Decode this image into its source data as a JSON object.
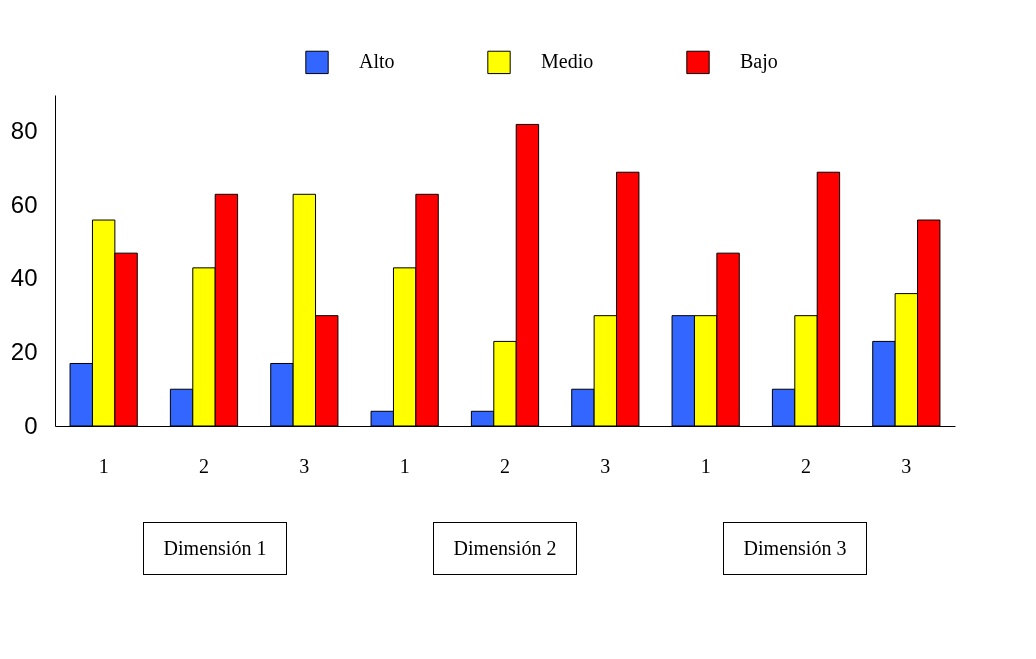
{
  "chart_data": {
    "type": "bar",
    "categories": [
      "1",
      "2",
      "3",
      "1",
      "2",
      "3",
      "1",
      "2",
      "3"
    ],
    "series": [
      {
        "name": "Alto",
        "color": "#3366ff",
        "values": [
          17,
          10,
          17,
          4,
          4,
          10,
          30,
          10,
          23
        ]
      },
      {
        "name": "Medio",
        "color": "#ffff00",
        "values": [
          56,
          43,
          63,
          43,
          23,
          30,
          30,
          30,
          36
        ]
      },
      {
        "name": "Bajo",
        "color": "#ff0000",
        "values": [
          47,
          63,
          30,
          63,
          82,
          69,
          47,
          69,
          56
        ]
      }
    ],
    "ylim": [
      0,
      90
    ],
    "yticks": [
      0,
      20,
      40,
      60,
      80
    ],
    "grid": false,
    "legend": "top right",
    "annotations": [
      "Dimensión 1",
      "Dimensión 2",
      "Dimensión 3"
    ]
  }
}
